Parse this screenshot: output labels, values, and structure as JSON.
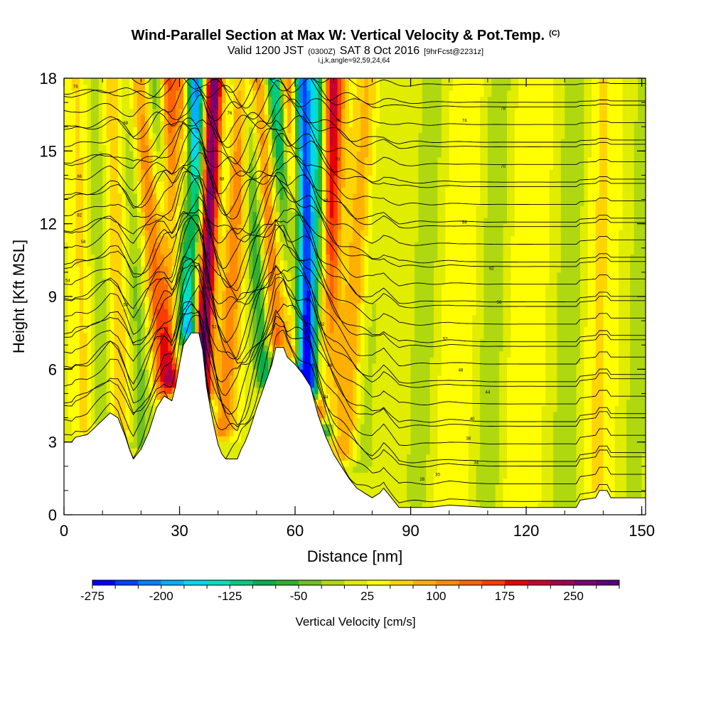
{
  "chart_data": {
    "type": "heatmap",
    "title": "Wind-Parallel Section at Max W: Vertical Velocity & Pot.Temp.",
    "title_mark": "(C)",
    "subtitle": {
      "prefix": "Valid 1200 JST",
      "utc": "(0300Z)",
      "date": "SAT 8 Oct 2016",
      "run": "[9hrFcst@2231z]"
    },
    "subtitle2": "i,j,k,angle=92,59,24,64",
    "xlabel": "Distance [nm]",
    "ylabel": "Height [Kft MSL]",
    "xlim": [
      0,
      151
    ],
    "ylim": [
      0,
      18
    ],
    "x_ticks": [
      0,
      30,
      60,
      90,
      120,
      150
    ],
    "y_ticks": [
      0,
      3,
      6,
      9,
      12,
      15,
      18
    ],
    "x_ticks_minor": [
      0,
      10,
      20,
      30,
      40,
      50,
      60,
      70,
      80,
      90,
      100,
      110,
      120,
      130,
      140,
      150
    ],
    "y_ticks_minor": [
      0,
      1,
      2,
      3,
      4,
      5,
      6,
      7,
      8,
      9,
      10,
      11,
      12,
      13,
      14,
      15,
      16,
      17,
      18
    ],
    "colorbar": {
      "label": "Vertical Velocity [cm/s]",
      "bins": [
        -275,
        -250,
        -225,
        -200,
        -175,
        -150,
        -125,
        -100,
        -75,
        -50,
        -25,
        0,
        25,
        50,
        75,
        100,
        125,
        150,
        175,
        200,
        225,
        250,
        275
      ],
      "tick_labels": [
        "-275",
        "-200",
        "-125",
        "-50",
        "25",
        "100",
        "175",
        "250"
      ],
      "colors": [
        "#0000ff",
        "#0040ff",
        "#0080ff",
        "#00b0ff",
        "#00d8f0",
        "#00e0c0",
        "#00cc80",
        "#00b050",
        "#30b030",
        "#70c020",
        "#b0d810",
        "#e0ec00",
        "#ffff00",
        "#ffd400",
        "#ffb000",
        "#ff8c00",
        "#ff6400",
        "#ff3c00",
        "#e60000",
        "#c80030",
        "#a00050",
        "#780070",
        "#5a007a"
      ]
    },
    "terrain": [
      [
        0,
        3.0
      ],
      [
        2,
        3.0
      ],
      [
        3,
        3.2
      ],
      [
        6,
        3.3
      ],
      [
        8,
        3.6
      ],
      [
        10,
        3.9
      ],
      [
        12,
        4.2
      ],
      [
        14,
        4.0
      ],
      [
        16,
        3.2
      ],
      [
        17,
        2.7
      ],
      [
        18,
        2.3
      ],
      [
        20,
        2.7
      ],
      [
        22,
        3.4
      ],
      [
        24,
        4.4
      ],
      [
        26,
        4.9
      ],
      [
        28,
        4.7
      ],
      [
        29,
        5.3
      ],
      [
        30,
        6.2
      ],
      [
        31,
        7.0
      ],
      [
        33,
        7.5
      ],
      [
        35,
        7.5
      ],
      [
        36,
        6.8
      ],
      [
        37,
        5.3
      ],
      [
        38,
        4.4
      ],
      [
        39,
        3.6
      ],
      [
        40,
        2.9
      ],
      [
        41,
        2.5
      ],
      [
        42,
        2.3
      ],
      [
        45,
        2.3
      ],
      [
        46,
        2.7
      ],
      [
        47,
        3.0
      ],
      [
        48,
        3.4
      ],
      [
        50,
        4.4
      ],
      [
        52,
        5.3
      ],
      [
        54,
        6.2
      ],
      [
        55,
        6.9
      ],
      [
        57,
        6.9
      ],
      [
        58,
        6.5
      ],
      [
        60,
        6.2
      ],
      [
        62,
        5.8
      ],
      [
        64,
        5.3
      ],
      [
        65,
        4.7
      ],
      [
        66,
        4.1
      ],
      [
        68,
        3.2
      ],
      [
        70,
        2.5
      ],
      [
        72,
        2.0
      ],
      [
        74,
        1.5
      ],
      [
        76,
        1.1
      ],
      [
        78,
        0.9
      ],
      [
        80,
        0.7
      ],
      [
        82,
        0.9
      ],
      [
        83,
        1.1
      ],
      [
        85,
        0.7
      ],
      [
        86,
        0.5
      ],
      [
        87,
        0.3
      ],
      [
        90,
        0.3
      ],
      [
        95,
        0.3
      ],
      [
        100,
        0.4
      ],
      [
        110,
        0.3
      ],
      [
        120,
        0.3
      ],
      [
        130,
        0.3
      ],
      [
        133,
        0.3
      ],
      [
        134,
        0.6
      ],
      [
        138,
        0.7
      ],
      [
        139,
        1.0
      ],
      [
        141,
        1.0
      ],
      [
        142,
        0.7
      ],
      [
        151,
        0.7
      ]
    ],
    "updraft_bands": [
      {
        "x_base": 26,
        "z_base": 5.0,
        "x_top": 19,
        "amp": 110,
        "width": 2.8
      },
      {
        "x_base": 28,
        "z_base": 5.5,
        "x_top": 27,
        "amp": 150,
        "width": 2.5
      },
      {
        "x_base": 35,
        "z_base": 6.5,
        "x_top": 31,
        "amp": 130,
        "width": 2.0
      },
      {
        "x_base": 36,
        "z_base": 5.0,
        "x_top": 39,
        "amp": 270,
        "width": 2.6
      },
      {
        "x_base": 41,
        "z_base": 3.5,
        "x_top": 46,
        "amp": 110,
        "width": 3.2
      },
      {
        "x_base": 55,
        "z_base": 7.0,
        "x_top": 50,
        "amp": 120,
        "width": 2.6
      },
      {
        "x_base": 60,
        "z_base": 6.5,
        "x_top": 58,
        "amp": 160,
        "width": 2.4
      },
      {
        "x_base": 67,
        "z_base": 4.0,
        "x_top": 70,
        "amp": 200,
        "width": 2.8
      },
      {
        "x_base": 73,
        "z_base": 2.5,
        "x_top": 80,
        "amp": 80,
        "width": 4.0
      },
      {
        "x_base": 15,
        "z_base": 3.5,
        "x_top": 12,
        "amp": 60,
        "width": 3.5
      },
      {
        "x_base": 6,
        "z_base": 3.5,
        "x_top": 4,
        "amp": 45,
        "width": 3.0
      },
      {
        "x_base": 100,
        "z_base": 0.5,
        "x_top": 105,
        "amp": 30,
        "width": 5.0
      },
      {
        "x_base": 118,
        "z_base": 0.5,
        "x_top": 122,
        "amp": 30,
        "width": 5.0
      },
      {
        "x_base": 138,
        "z_base": 1.0,
        "x_top": 140,
        "amp": 35,
        "width": 4.0
      }
    ],
    "downdraft_bands": [
      {
        "x_base": 33,
        "z_base": 7.5,
        "x_top": 34,
        "amp": -260,
        "width": 2.6
      },
      {
        "x_base": 30,
        "z_base": 6.5,
        "x_top": 24,
        "amp": -100,
        "width": 2.5
      },
      {
        "x_base": 38,
        "z_base": 4.0,
        "x_top": 43,
        "amp": -70,
        "width": 2.5
      },
      {
        "x_base": 52,
        "z_base": 5.5,
        "x_top": 48,
        "amp": -110,
        "width": 2.5
      },
      {
        "x_base": 62,
        "z_base": 5.5,
        "x_top": 55,
        "amp": -180,
        "width": 2.6
      },
      {
        "x_base": 64,
        "z_base": 5.0,
        "x_top": 62,
        "amp": -260,
        "width": 2.4
      },
      {
        "x_base": 68,
        "z_base": 3.5,
        "x_top": 66,
        "amp": -150,
        "width": 2.2
      },
      {
        "x_base": 77,
        "z_base": 2.0,
        "x_top": 82,
        "amp": -50,
        "width": 3.0
      },
      {
        "x_base": 10,
        "z_base": 3.8,
        "x_top": 8,
        "amp": -55,
        "width": 3.5
      },
      {
        "x_base": 20,
        "z_base": 3.0,
        "x_top": 17,
        "amp": -60,
        "width": 3.0
      },
      {
        "x_base": 92,
        "z_base": 0.5,
        "x_top": 96,
        "amp": -35,
        "width": 4.0
      },
      {
        "x_base": 110,
        "z_base": 0.5,
        "x_top": 113,
        "amp": -40,
        "width": 4.0
      },
      {
        "x_base": 130,
        "z_base": 0.5,
        "x_top": 133,
        "amp": -40,
        "width": 4.0
      },
      {
        "x_base": 148,
        "z_base": 1.0,
        "x_top": 151,
        "amp": -35,
        "width": 3.0
      }
    ],
    "background_w": 20,
    "isentrope_levels": [
      35,
      36,
      37,
      38,
      39,
      40,
      41,
      42,
      43,
      44,
      45,
      46,
      47,
      48,
      49,
      50,
      51,
      52,
      53,
      54,
      55,
      56,
      57,
      58,
      59,
      60,
      61,
      62,
      63,
      64,
      65,
      66,
      67,
      68,
      69,
      70
    ],
    "isentrope_labels": [
      {
        "x": 3,
        "z": 17.6,
        "text": "74"
      },
      {
        "x": 16,
        "z": 16.1,
        "text": "68"
      },
      {
        "x": 4,
        "z": 13.9,
        "text": "66"
      },
      {
        "x": 4,
        "z": 12.3,
        "text": "62"
      },
      {
        "x": 5,
        "z": 11.2,
        "text": "58"
      },
      {
        "x": 1,
        "z": 9.6,
        "text": "54"
      },
      {
        "x": 16,
        "z": 8.6,
        "text": "50"
      },
      {
        "x": 39,
        "z": 15.0,
        "text": "72"
      },
      {
        "x": 41,
        "z": 13.8,
        "text": "68"
      },
      {
        "x": 37,
        "z": 10.7,
        "text": "60"
      },
      {
        "x": 37,
        "z": 9.3,
        "text": "56"
      },
      {
        "x": 39,
        "z": 7.7,
        "text": "52"
      },
      {
        "x": 43,
        "z": 16.5,
        "text": "76"
      },
      {
        "x": 71,
        "z": 16.2,
        "text": "74"
      },
      {
        "x": 71,
        "z": 14.6,
        "text": "70"
      },
      {
        "x": 68,
        "z": 12.9,
        "text": "66"
      },
      {
        "x": 62,
        "z": 10.4,
        "text": "62"
      },
      {
        "x": 63,
        "z": 8.8,
        "text": "56"
      },
      {
        "x": 67,
        "z": 7.8,
        "text": "52"
      },
      {
        "x": 69,
        "z": 6.1,
        "text": "48"
      },
      {
        "x": 68,
        "z": 4.8,
        "text": "44"
      },
      {
        "x": 114,
        "z": 16.7,
        "text": "78"
      },
      {
        "x": 104,
        "z": 16.2,
        "text": "74"
      },
      {
        "x": 114,
        "z": 14.3,
        "text": "70"
      },
      {
        "x": 104,
        "z": 12.0,
        "text": "66"
      },
      {
        "x": 111,
        "z": 10.1,
        "text": "62"
      },
      {
        "x": 113,
        "z": 8.7,
        "text": "56"
      },
      {
        "x": 99,
        "z": 7.2,
        "text": "52"
      },
      {
        "x": 103,
        "z": 5.9,
        "text": "48"
      },
      {
        "x": 110,
        "z": 5.0,
        "text": "44"
      },
      {
        "x": 106,
        "z": 3.9,
        "text": "40"
      },
      {
        "x": 105,
        "z": 3.1,
        "text": "38"
      },
      {
        "x": 107,
        "z": 2.1,
        "text": "34"
      },
      {
        "x": 97,
        "z": 1.6,
        "text": "30"
      },
      {
        "x": 93,
        "z": 1.4,
        "text": "28"
      }
    ]
  }
}
